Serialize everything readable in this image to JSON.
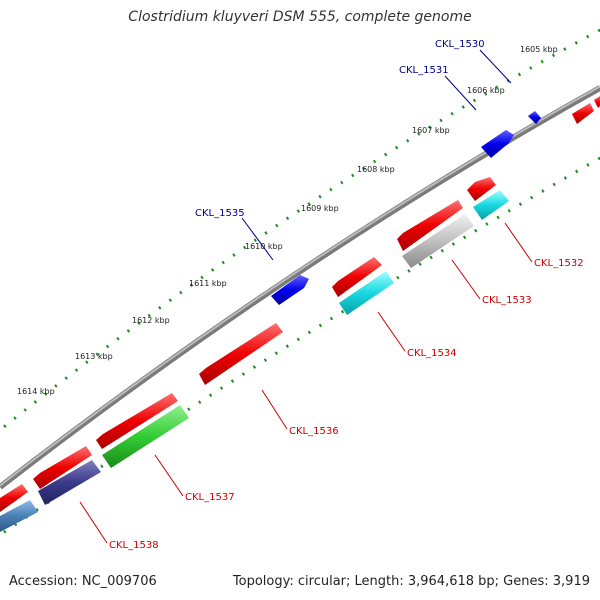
{
  "title": "Clostridium kluyveri DSM 555, complete genome",
  "accession": "Accession: NC_009706",
  "summary": "Topology: circular; Length: 3,964,618 bp; Genes: 3,919",
  "kbp_ticks": [
    "1605 kbp",
    "1606 kbp",
    "1607 kbp",
    "1608 kbp",
    "1609 kbp",
    "1610 kbp",
    "1611 kbp",
    "1612 kbp",
    "1613 kbp",
    "1614 kbp"
  ],
  "gene_labels": [
    {
      "text": "CKL_1530",
      "color": "#00008b"
    },
    {
      "text": "CKL_1531",
      "color": "#00008b"
    },
    {
      "text": "CKL_1535",
      "color": "#00008b"
    },
    {
      "text": "CKL_1532",
      "color": "#cc0000"
    },
    {
      "text": "CKL_1533",
      "color": "#cc0000"
    },
    {
      "text": "CKL_1534",
      "color": "#cc0000"
    },
    {
      "text": "CKL_1536",
      "color": "#cc0000"
    },
    {
      "text": "CKL_1537",
      "color": "#cc0000"
    },
    {
      "text": "CKL_1538",
      "color": "#cc0000"
    }
  ],
  "colors": {
    "backbone": "#888888",
    "dots": "#1e8c1e",
    "forward_gene": "#0000ee",
    "reverse_gene": "#ee0000",
    "cyan_feature": "#18d8e0",
    "grey_feature": "#c0c0c0",
    "green_feature": "#33cc33",
    "purple_feature": "#3a3a8a",
    "steel_feature": "#4a7fb5"
  }
}
